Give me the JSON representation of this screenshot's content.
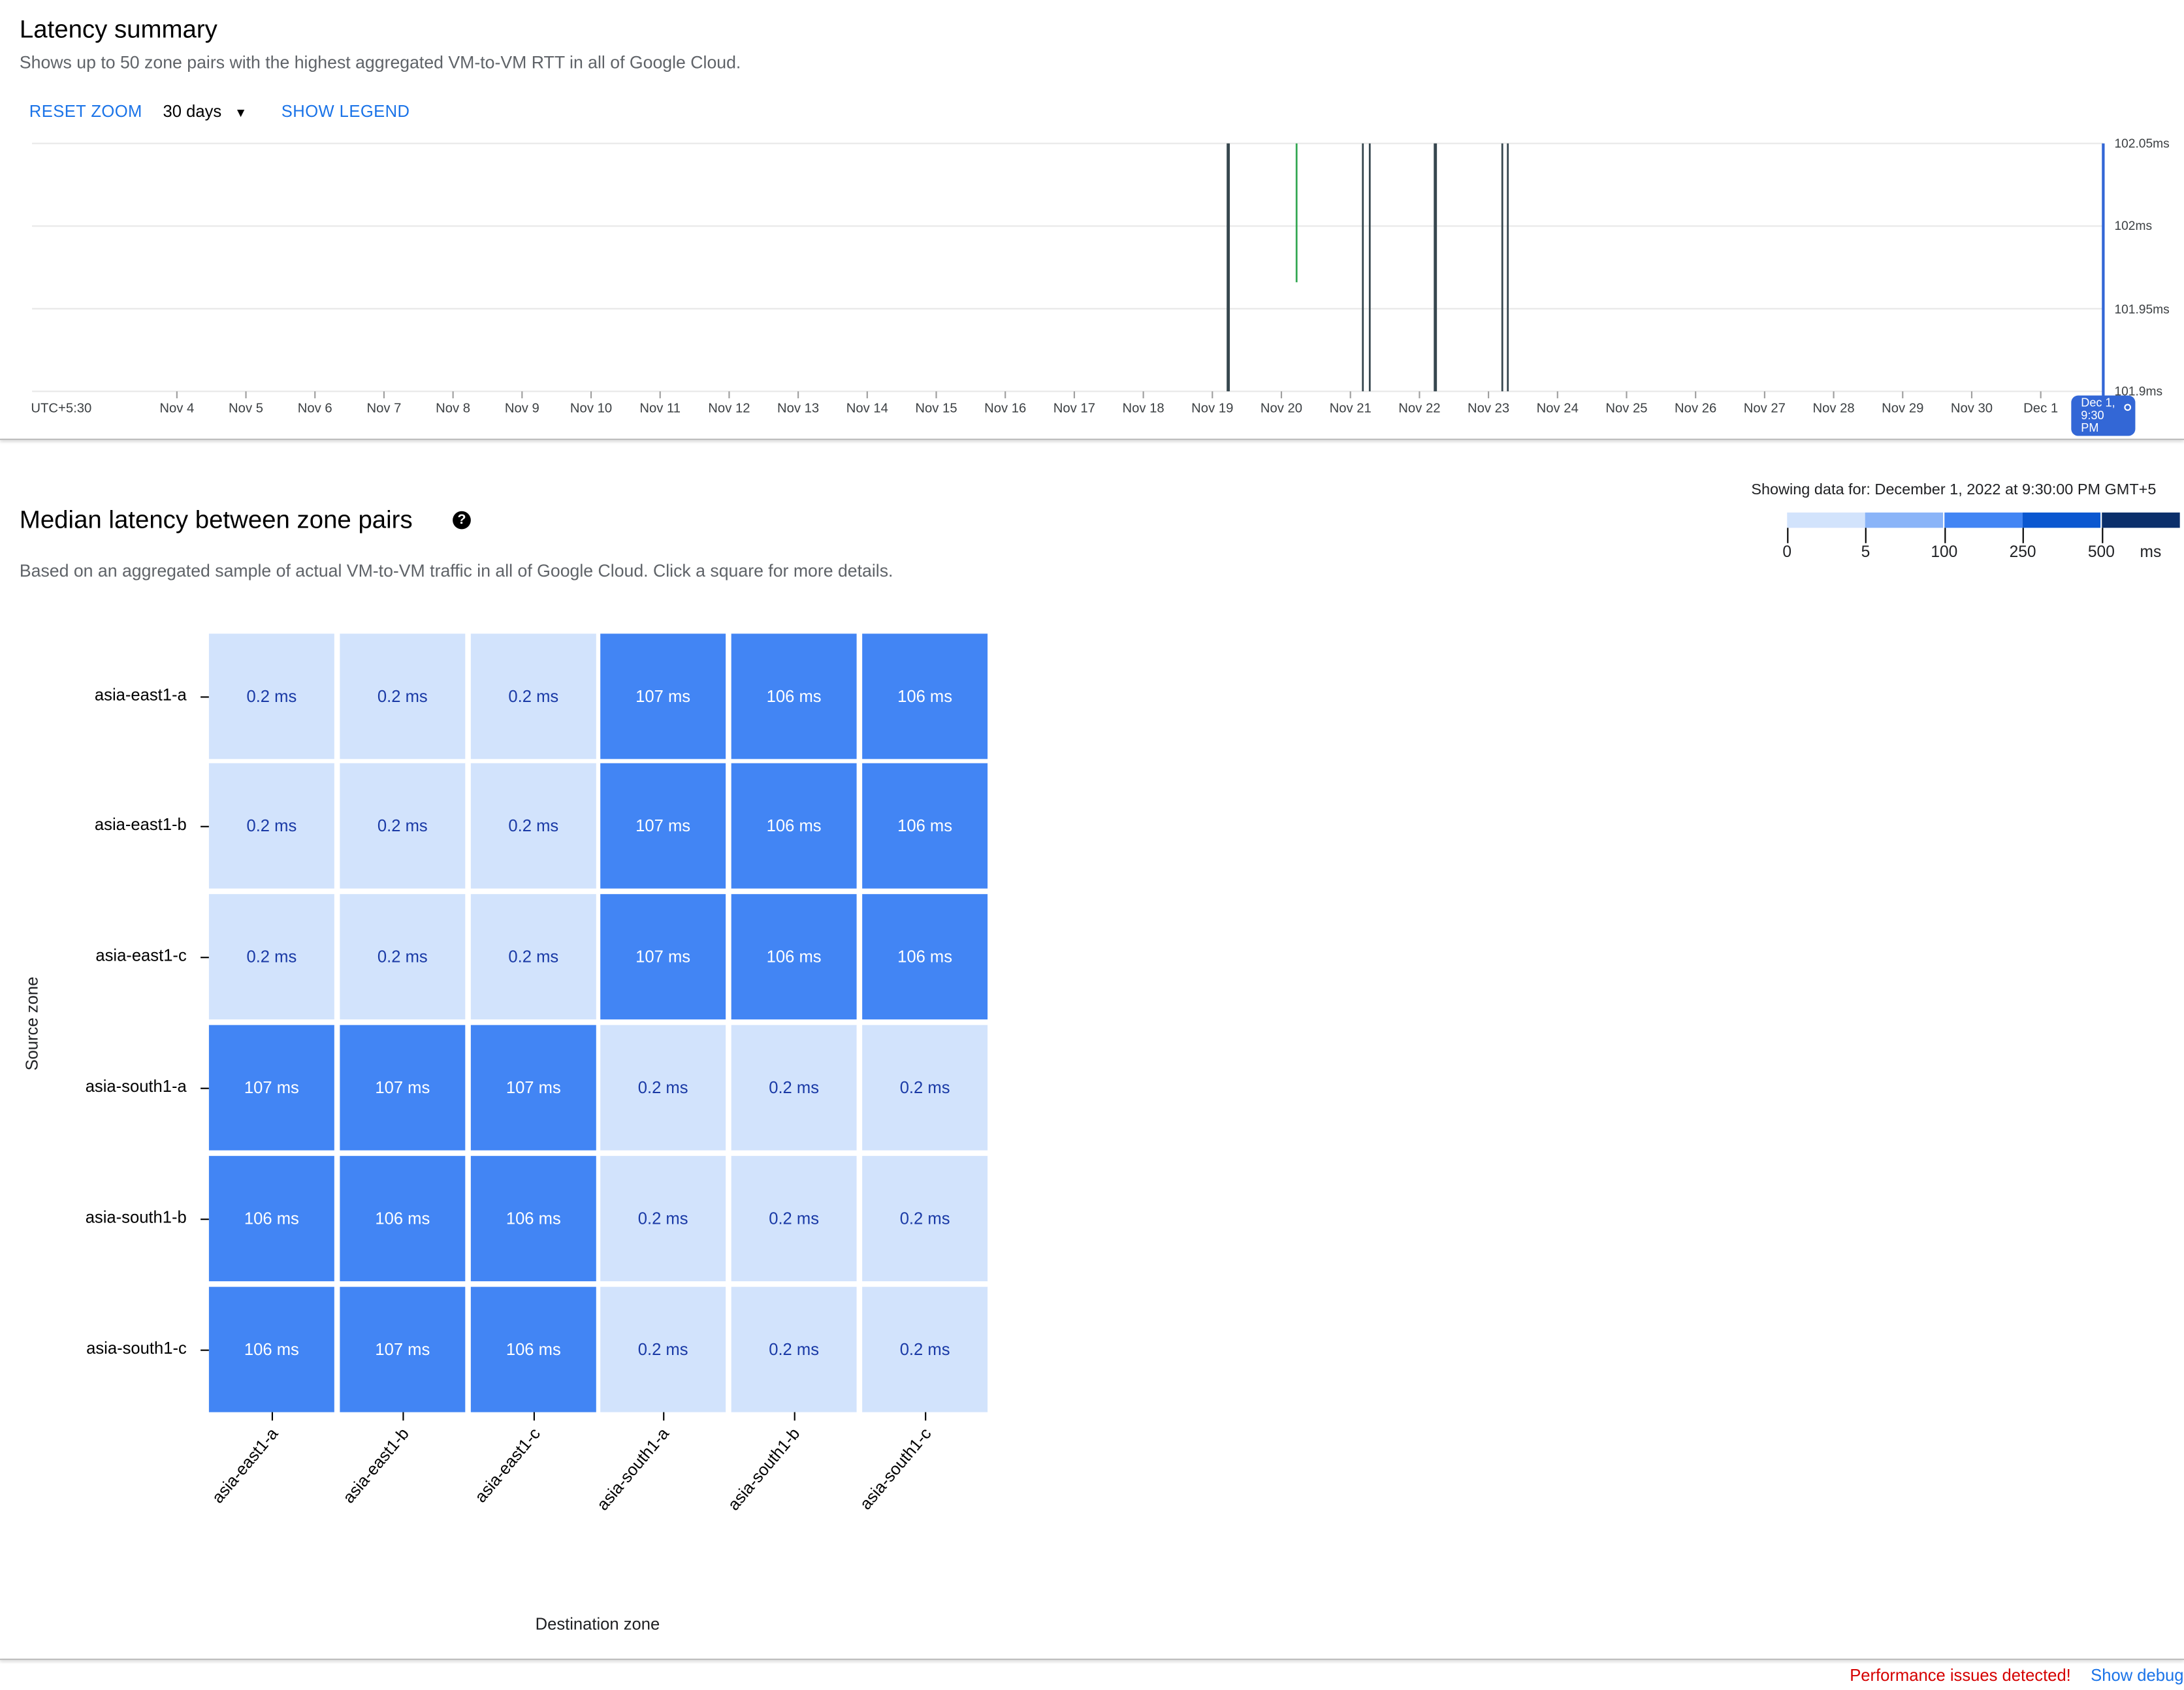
{
  "summary": {
    "title": "Latency summary",
    "subtitle": "Shows up to 50 zone pairs with the highest aggregated VM-to-VM RTT in all of Google Cloud.",
    "reset_zoom": "RESET ZOOM",
    "range_select": "30 days",
    "show_legend": "SHOW LEGEND"
  },
  "chart_data": {
    "type": "line",
    "timezone_label": "UTC+5:30",
    "x_ticks": [
      "Nov 4",
      "Nov 5",
      "Nov 6",
      "Nov 7",
      "Nov 8",
      "Nov 9",
      "Nov 10",
      "Nov 11",
      "Nov 12",
      "Nov 13",
      "Nov 14",
      "Nov 15",
      "Nov 16",
      "Nov 17",
      "Nov 18",
      "Nov 19",
      "Nov 20",
      "Nov 21",
      "Nov 22",
      "Nov 23",
      "Nov 24",
      "Nov 25",
      "Nov 26",
      "Nov 27",
      "Nov 28",
      "Nov 29",
      "Nov 30",
      "Dec 1"
    ],
    "y_ticks": [
      "102.05ms",
      "102ms",
      "101.95ms",
      "101.9ms"
    ],
    "ylim": [
      101.9,
      102.05
    ],
    "grid": true,
    "series_marks": [
      {
        "date": "Nov 19",
        "day_fraction": 0.22,
        "from": 101.9,
        "to": 102.05,
        "color": "#37474f"
      },
      {
        "date": "Nov 19",
        "day_fraction": 0.24,
        "from": 101.9,
        "to": 102.05,
        "color": "#37474f"
      },
      {
        "date": "Nov 20",
        "day_fraction": 0.22,
        "from": 101.966,
        "to": 102.05,
        "color": "#34a853"
      },
      {
        "date": "Nov 21",
        "day_fraction": 0.18,
        "from": 101.9,
        "to": 102.05,
        "color": "#37474f"
      },
      {
        "date": "Nov 21",
        "day_fraction": 0.28,
        "from": 101.9,
        "to": 102.05,
        "color": "#37474f"
      },
      {
        "date": "Nov 22",
        "day_fraction": 0.22,
        "from": 101.9,
        "to": 102.05,
        "color": "#37474f"
      },
      {
        "date": "Nov 22",
        "day_fraction": 0.24,
        "from": 101.9,
        "to": 102.05,
        "color": "#37474f"
      },
      {
        "date": "Nov 23",
        "day_fraction": 0.2,
        "from": 101.9,
        "to": 102.05,
        "color": "#37474f"
      },
      {
        "date": "Nov 23",
        "day_fraction": 0.28,
        "from": 101.9,
        "to": 102.05,
        "color": "#37474f"
      }
    ],
    "cursor_label": "Dec 1, 9:30 PM",
    "cursor_color": "#3367d6"
  },
  "matrix": {
    "title": "Median latency between zone pairs",
    "help_icon": "help-circle-icon",
    "description": "Based on an aggregated sample of actual VM-to-VM traffic in all of Google Cloud. Click a square for more details.",
    "showing_data_for": "Showing data for: December 1, 2022 at 9:30:00 PM GMT+5",
    "legend": {
      "labels": [
        "0",
        "5",
        "100",
        "250",
        "500"
      ],
      "unit": "ms",
      "colors": [
        "#d2e3fc",
        "#8ab4f8",
        "#4285f4",
        "#0b57d0",
        "#0b2f6b"
      ]
    },
    "y_axis_title": "Source zone",
    "x_axis_title": "Destination zone",
    "rows": [
      "asia-east1-a",
      "asia-east1-b",
      "asia-east1-c",
      "asia-south1-a",
      "asia-south1-b",
      "asia-south1-c"
    ],
    "columns": [
      "asia-east1-a",
      "asia-east1-b",
      "asia-east1-c",
      "asia-south1-a",
      "asia-south1-b",
      "asia-south1-c"
    ],
    "values": [
      [
        "0.2 ms",
        "0.2 ms",
        "0.2 ms",
        "107 ms",
        "106 ms",
        "106 ms"
      ],
      [
        "0.2 ms",
        "0.2 ms",
        "0.2 ms",
        "107 ms",
        "106 ms",
        "106 ms"
      ],
      [
        "0.2 ms",
        "0.2 ms",
        "0.2 ms",
        "107 ms",
        "106 ms",
        "106 ms"
      ],
      [
        "107 ms",
        "107 ms",
        "107 ms",
        "0.2 ms",
        "0.2 ms",
        "0.2 ms"
      ],
      [
        "106 ms",
        "106 ms",
        "106 ms",
        "0.2 ms",
        "0.2 ms",
        "0.2 ms"
      ],
      [
        "106 ms",
        "107 ms",
        "106 ms",
        "0.2 ms",
        "0.2 ms",
        "0.2 ms"
      ]
    ]
  },
  "footer": {
    "warning": "Performance issues detected!",
    "warning_color": "#d50000",
    "debug_link": "Show debug p"
  }
}
